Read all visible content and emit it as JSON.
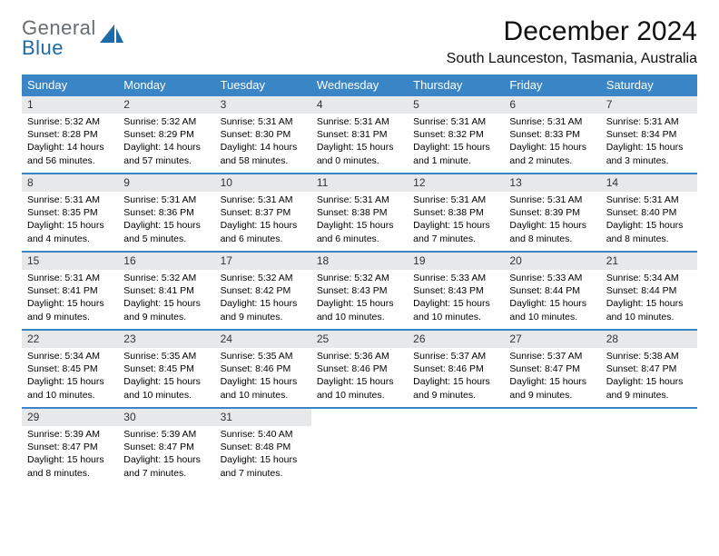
{
  "logo": {
    "word1": "General",
    "word2": "Blue",
    "color1": "#676d72",
    "color2": "#1d6aa9"
  },
  "title": "December 2024",
  "location": "South Launceston, Tasmania, Australia",
  "header_bg": "#3a85c6",
  "header_fg": "#ffffff",
  "daynum_bg": "#e7e8e9",
  "rule_color": "#3a85c6",
  "dayNames": [
    "Sunday",
    "Monday",
    "Tuesday",
    "Wednesday",
    "Thursday",
    "Friday",
    "Saturday"
  ],
  "weeks": [
    [
      {
        "n": "1",
        "sr": "Sunrise: 5:32 AM",
        "ss": "Sunset: 8:28 PM",
        "dl": "Daylight: 14 hours and 56 minutes."
      },
      {
        "n": "2",
        "sr": "Sunrise: 5:32 AM",
        "ss": "Sunset: 8:29 PM",
        "dl": "Daylight: 14 hours and 57 minutes."
      },
      {
        "n": "3",
        "sr": "Sunrise: 5:31 AM",
        "ss": "Sunset: 8:30 PM",
        "dl": "Daylight: 14 hours and 58 minutes."
      },
      {
        "n": "4",
        "sr": "Sunrise: 5:31 AM",
        "ss": "Sunset: 8:31 PM",
        "dl": "Daylight: 15 hours and 0 minutes."
      },
      {
        "n": "5",
        "sr": "Sunrise: 5:31 AM",
        "ss": "Sunset: 8:32 PM",
        "dl": "Daylight: 15 hours and 1 minute."
      },
      {
        "n": "6",
        "sr": "Sunrise: 5:31 AM",
        "ss": "Sunset: 8:33 PM",
        "dl": "Daylight: 15 hours and 2 minutes."
      },
      {
        "n": "7",
        "sr": "Sunrise: 5:31 AM",
        "ss": "Sunset: 8:34 PM",
        "dl": "Daylight: 15 hours and 3 minutes."
      }
    ],
    [
      {
        "n": "8",
        "sr": "Sunrise: 5:31 AM",
        "ss": "Sunset: 8:35 PM",
        "dl": "Daylight: 15 hours and 4 minutes."
      },
      {
        "n": "9",
        "sr": "Sunrise: 5:31 AM",
        "ss": "Sunset: 8:36 PM",
        "dl": "Daylight: 15 hours and 5 minutes."
      },
      {
        "n": "10",
        "sr": "Sunrise: 5:31 AM",
        "ss": "Sunset: 8:37 PM",
        "dl": "Daylight: 15 hours and 6 minutes."
      },
      {
        "n": "11",
        "sr": "Sunrise: 5:31 AM",
        "ss": "Sunset: 8:38 PM",
        "dl": "Daylight: 15 hours and 6 minutes."
      },
      {
        "n": "12",
        "sr": "Sunrise: 5:31 AM",
        "ss": "Sunset: 8:38 PM",
        "dl": "Daylight: 15 hours and 7 minutes."
      },
      {
        "n": "13",
        "sr": "Sunrise: 5:31 AM",
        "ss": "Sunset: 8:39 PM",
        "dl": "Daylight: 15 hours and 8 minutes."
      },
      {
        "n": "14",
        "sr": "Sunrise: 5:31 AM",
        "ss": "Sunset: 8:40 PM",
        "dl": "Daylight: 15 hours and 8 minutes."
      }
    ],
    [
      {
        "n": "15",
        "sr": "Sunrise: 5:31 AM",
        "ss": "Sunset: 8:41 PM",
        "dl": "Daylight: 15 hours and 9 minutes."
      },
      {
        "n": "16",
        "sr": "Sunrise: 5:32 AM",
        "ss": "Sunset: 8:41 PM",
        "dl": "Daylight: 15 hours and 9 minutes."
      },
      {
        "n": "17",
        "sr": "Sunrise: 5:32 AM",
        "ss": "Sunset: 8:42 PM",
        "dl": "Daylight: 15 hours and 9 minutes."
      },
      {
        "n": "18",
        "sr": "Sunrise: 5:32 AM",
        "ss": "Sunset: 8:43 PM",
        "dl": "Daylight: 15 hours and 10 minutes."
      },
      {
        "n": "19",
        "sr": "Sunrise: 5:33 AM",
        "ss": "Sunset: 8:43 PM",
        "dl": "Daylight: 15 hours and 10 minutes."
      },
      {
        "n": "20",
        "sr": "Sunrise: 5:33 AM",
        "ss": "Sunset: 8:44 PM",
        "dl": "Daylight: 15 hours and 10 minutes."
      },
      {
        "n": "21",
        "sr": "Sunrise: 5:34 AM",
        "ss": "Sunset: 8:44 PM",
        "dl": "Daylight: 15 hours and 10 minutes."
      }
    ],
    [
      {
        "n": "22",
        "sr": "Sunrise: 5:34 AM",
        "ss": "Sunset: 8:45 PM",
        "dl": "Daylight: 15 hours and 10 minutes."
      },
      {
        "n": "23",
        "sr": "Sunrise: 5:35 AM",
        "ss": "Sunset: 8:45 PM",
        "dl": "Daylight: 15 hours and 10 minutes."
      },
      {
        "n": "24",
        "sr": "Sunrise: 5:35 AM",
        "ss": "Sunset: 8:46 PM",
        "dl": "Daylight: 15 hours and 10 minutes."
      },
      {
        "n": "25",
        "sr": "Sunrise: 5:36 AM",
        "ss": "Sunset: 8:46 PM",
        "dl": "Daylight: 15 hours and 10 minutes."
      },
      {
        "n": "26",
        "sr": "Sunrise: 5:37 AM",
        "ss": "Sunset: 8:46 PM",
        "dl": "Daylight: 15 hours and 9 minutes."
      },
      {
        "n": "27",
        "sr": "Sunrise: 5:37 AM",
        "ss": "Sunset: 8:47 PM",
        "dl": "Daylight: 15 hours and 9 minutes."
      },
      {
        "n": "28",
        "sr": "Sunrise: 5:38 AM",
        "ss": "Sunset: 8:47 PM",
        "dl": "Daylight: 15 hours and 9 minutes."
      }
    ],
    [
      {
        "n": "29",
        "sr": "Sunrise: 5:39 AM",
        "ss": "Sunset: 8:47 PM",
        "dl": "Daylight: 15 hours and 8 minutes."
      },
      {
        "n": "30",
        "sr": "Sunrise: 5:39 AM",
        "ss": "Sunset: 8:47 PM",
        "dl": "Daylight: 15 hours and 7 minutes."
      },
      {
        "n": "31",
        "sr": "Sunrise: 5:40 AM",
        "ss": "Sunset: 8:48 PM",
        "dl": "Daylight: 15 hours and 7 minutes."
      },
      null,
      null,
      null,
      null
    ]
  ]
}
